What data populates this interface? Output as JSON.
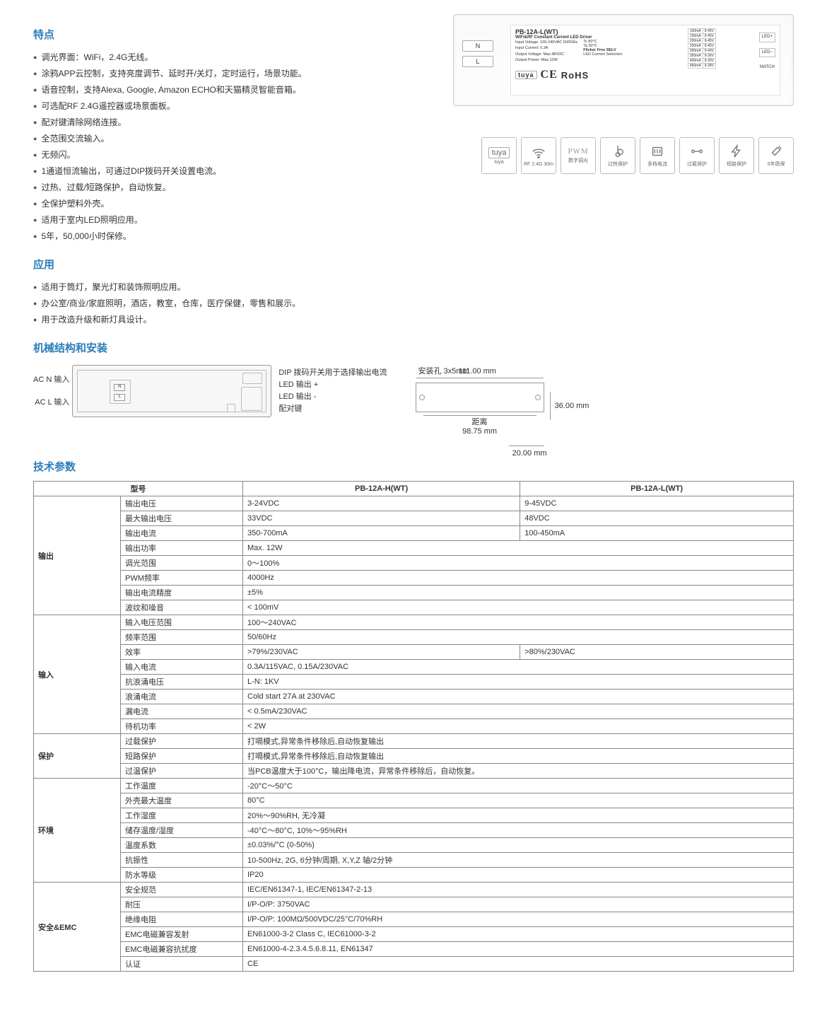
{
  "sections": {
    "features": "特点",
    "applications": "应用",
    "mechanical": "机械结构和安装",
    "specs": "技术参数"
  },
  "features": [
    "调光界面：WiFi，2.4G无线。",
    "涂鸦APP云控制，支持亮度调节、延时开/关灯，定时运行，场景功能。",
    "语音控制，支持Alexa, Google, Amazon ECHO和天猫精灵智能音箱。",
    "可选配RF 2.4G遥控器或场景面板。",
    "配对键清除网络连接。",
    "全范围交流输入。",
    "无频闪。",
    "1通道恒流输出，可通过DIP拨码开关设置电流。",
    "过热、过载/短路保护，自动恢复。",
    "全保护塑料外壳。",
    "适用于室内LED照明应用。",
    "5年，50,000小时保修。"
  ],
  "applications": [
    "适用于筒灯，聚光灯和装饰照明应用。",
    "办公室/商业/家庭照明，酒店，教室，仓库，医疗保健，零售和展示。",
    "用于改造升级和新灯具设计。"
  ],
  "product_label": {
    "title": "PB-12A-L(WT)",
    "sub": "WiFi&RF Constant Current LED Driver",
    "line1": "Input Voltage: 100-240VAC  50/60Hz",
    "line2": "Input Current: 0.3A",
    "line3": "Output Voltage: Max.48VDC",
    "line4": "Output Power: Max.12W",
    "flicker": "Flicker Free   SELV",
    "tc": "Tc 80°C",
    "ta": "Ta 50°C",
    "sel": "LED Current Selection:",
    "n": "N",
    "l": "L",
    "led_p": "LED+",
    "led_n": "LED−",
    "match": "MATCH",
    "cert": "tuya  CE RoHS",
    "rows": [
      [
        "100mA",
        "9-45V"
      ],
      [
        "150mA",
        "9-45V"
      ],
      [
        "200mA",
        "9-45V"
      ],
      [
        "250mA",
        "9-45V"
      ],
      [
        "300mA",
        "9-40V"
      ],
      [
        "350mA",
        "9-36V"
      ],
      [
        "400mA",
        "9-30V"
      ],
      [
        "450mA",
        "9-28V"
      ]
    ]
  },
  "icons": [
    {
      "t": "tuya",
      "s": ""
    },
    {
      "t": "RF 2.4G 30m",
      "s": "wifi"
    },
    {
      "t": "数字调光",
      "s": "PWM"
    },
    {
      "t": "过热保护",
      "s": "therm"
    },
    {
      "t": "多档电流",
      "s": "dip"
    },
    {
      "t": "过载保护",
      "s": "wire"
    },
    {
      "t": "短路保护",
      "s": "bolt"
    },
    {
      "t": "5年质保",
      "s": "tool"
    }
  ],
  "mech": {
    "acn": "AC N 输入",
    "acl": "AC L 输入",
    "dip": "DIP 拨码开关用于选择输出电流",
    "ledp": "LED 输出 +",
    "ledn": "LED 输出 -",
    "pair": "配对键",
    "hole": "安装孔 3x5mm",
    "w": "111.00 mm",
    "h": "36.00 mm",
    "dist": "距离",
    "d": "98.75 mm",
    "d2": "20.00 mm"
  },
  "spec_header": {
    "model": "型号",
    "m1": "PB-12A-H(WT)",
    "m2": "PB-12A-L(WT)"
  },
  "spec_groups": [
    {
      "name": "输出",
      "rows": [
        {
          "p": "输出电压",
          "v": [
            "3-24VDC",
            "9-45VDC"
          ]
        },
        {
          "p": "最大输出电压",
          "v": [
            "33VDC",
            "48VDC"
          ]
        },
        {
          "p": "输出电流",
          "v": [
            "350-700mA",
            "100-450mA"
          ]
        },
        {
          "p": "输出功率",
          "v": [
            "Max. 12W"
          ]
        },
        {
          "p": "调光范围",
          "v": [
            "0～100%"
          ]
        },
        {
          "p": "PWM频率",
          "v": [
            "4000Hz"
          ]
        },
        {
          "p": "输出电流精度",
          "v": [
            "±5%"
          ]
        },
        {
          "p": "波纹和噪音",
          "v": [
            "< 100mV"
          ]
        }
      ]
    },
    {
      "name": "输入",
      "rows": [
        {
          "p": "输入电压范围",
          "v": [
            "100～240VAC"
          ]
        },
        {
          "p": "频率范围",
          "v": [
            "50/60Hz"
          ]
        },
        {
          "p": "效率",
          "v": [
            ">79%/230VAC",
            ">80%/230VAC"
          ]
        },
        {
          "p": "输入电流",
          "v": [
            "0.3A/115VAC, 0.15A/230VAC"
          ]
        },
        {
          "p": "抗浪涌电压",
          "v": [
            "L-N: 1KV"
          ]
        },
        {
          "p": "浪涌电流",
          "v": [
            "Cold start 27A at 230VAC"
          ]
        },
        {
          "p": "漏电流",
          "v": [
            "< 0.5mA/230VAC"
          ]
        },
        {
          "p": "待机功率",
          "v": [
            "< 2W"
          ]
        }
      ]
    },
    {
      "name": "保护",
      "rows": [
        {
          "p": "过载保护",
          "v": [
            "打嗝模式,异常条件移除后,自动恢复输出"
          ]
        },
        {
          "p": "短路保护",
          "v": [
            "打嗝模式,异常条件移除后,自动恢复输出"
          ]
        },
        {
          "p": "过温保护",
          "v": [
            "当PCB温度大于100°C，输出降电流，异常条件移除后，自动恢复。"
          ]
        }
      ]
    },
    {
      "name": "环境",
      "rows": [
        {
          "p": "工作温度",
          "v": [
            "-20°C～50°C"
          ]
        },
        {
          "p": "外壳最大温度",
          "v": [
            "80°C"
          ]
        },
        {
          "p": "工作湿度",
          "v": [
            "20%～90%RH, 无冷凝"
          ]
        },
        {
          "p": "储存温度/湿度",
          "v": [
            "-40°C～80°C, 10%～95%RH"
          ]
        },
        {
          "p": "温度系数",
          "v": [
            "±0.03%/°C (0-50%)"
          ]
        },
        {
          "p": "抗振性",
          "v": [
            "10-500Hz, 2G, 6分钟/周期,  X,Y,Z 轴/2分钟"
          ]
        },
        {
          "p": "防水等级",
          "v": [
            "IP20"
          ]
        }
      ]
    },
    {
      "name": "安全&EMC",
      "rows": [
        {
          "p": "安全规范",
          "v": [
            "IEC/EN61347-1, IEC/EN61347-2-13"
          ]
        },
        {
          "p": "耐压",
          "v": [
            "I/P-O/P: 3750VAC"
          ]
        },
        {
          "p": "绝缘电阻",
          "v": [
            "I/P-O/P: 100MΩ/500VDC/25°C/70%RH"
          ]
        },
        {
          "p": "EMC电磁兼容发射",
          "v": [
            "EN61000-3-2 Class C, IEC61000-3-2"
          ]
        },
        {
          "p": "EMC电磁兼容抗扰度",
          "v": [
            "EN61000-4-2.3.4.5.6.8.11, EN61347"
          ]
        },
        {
          "p": "认证",
          "v": [
            "CE"
          ]
        }
      ]
    }
  ],
  "colors": {
    "title": "#2B7DBA",
    "border": "#888888",
    "text": "#333333"
  }
}
